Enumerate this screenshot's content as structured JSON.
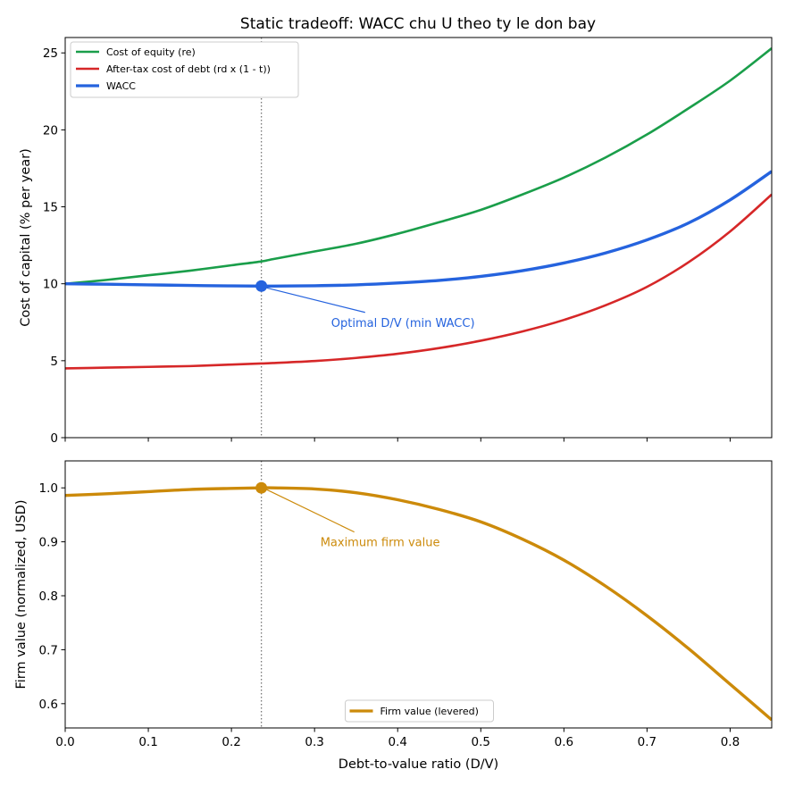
{
  "chart_data": [
    {
      "type": "line",
      "title": "Static tradeoff: WACC chu U theo ty le don bay",
      "xlabel": "",
      "ylabel": "Cost of capital (% per year)",
      "xlim": [
        0,
        0.85
      ],
      "ylim": [
        0,
        26
      ],
      "xticks": [
        0.0,
        0.1,
        0.2,
        0.3,
        0.4,
        0.5,
        0.6,
        0.7,
        0.8
      ],
      "yticks": [
        0,
        5,
        10,
        15,
        20,
        25
      ],
      "legend_position": "top-left",
      "x": [
        0.0,
        0.05,
        0.1,
        0.15,
        0.2,
        0.236,
        0.25,
        0.3,
        0.35,
        0.4,
        0.45,
        0.5,
        0.55,
        0.6,
        0.65,
        0.7,
        0.75,
        0.8,
        0.85
      ],
      "series": [
        {
          "name": "Cost of equity (re)",
          "color": "#1a9e4a",
          "values": [
            10.0,
            10.25,
            10.55,
            10.85,
            11.2,
            11.45,
            11.6,
            12.1,
            12.6,
            13.25,
            14.0,
            14.8,
            15.8,
            16.9,
            18.2,
            19.7,
            21.4,
            23.2,
            25.3
          ]
        },
        {
          "name": "After-tax cost of debt (rd x (1 - t))",
          "color": "#d62728",
          "values": [
            4.5,
            4.55,
            4.6,
            4.65,
            4.75,
            4.82,
            4.85,
            4.98,
            5.18,
            5.45,
            5.82,
            6.3,
            6.9,
            7.65,
            8.6,
            9.8,
            11.4,
            13.4,
            15.8
          ]
        },
        {
          "name": "WACC",
          "color": "#2563de",
          "values": [
            10.0,
            9.97,
            9.93,
            9.89,
            9.86,
            9.85,
            9.85,
            9.87,
            9.93,
            10.05,
            10.22,
            10.48,
            10.85,
            11.35,
            12.0,
            12.85,
            13.95,
            15.45,
            17.3
          ]
        }
      ],
      "marker": {
        "x": 0.236,
        "y": 9.85,
        "color": "#2563de"
      },
      "vline_x": 0.236,
      "annotation": {
        "text": "Optimal D/V (min WACC)",
        "x": 0.236,
        "y": 9.85,
        "text_x": 0.32,
        "text_y": 7.5,
        "color": "#2563de"
      }
    },
    {
      "type": "line",
      "title": "",
      "xlabel": "Debt-to-value ratio (D/V)",
      "ylabel": "Firm value (normalized, USD)",
      "xlim": [
        0,
        0.85
      ],
      "ylim": [
        0.555,
        1.05
      ],
      "xticks": [
        0.0,
        0.1,
        0.2,
        0.3,
        0.4,
        0.5,
        0.6,
        0.7,
        0.8
      ],
      "yticks": [
        0.6,
        0.7,
        0.8,
        0.9,
        1.0
      ],
      "legend_position": "bottom-center",
      "x": [
        0.0,
        0.05,
        0.1,
        0.15,
        0.2,
        0.236,
        0.25,
        0.3,
        0.35,
        0.4,
        0.45,
        0.5,
        0.55,
        0.6,
        0.65,
        0.7,
        0.75,
        0.8,
        0.85
      ],
      "series": [
        {
          "name": "Firm value (levered)",
          "color": "#cc8a0a",
          "values": [
            0.986,
            0.989,
            0.993,
            0.997,
            0.999,
            1.0,
            1.0,
            0.998,
            0.991,
            0.978,
            0.96,
            0.937,
            0.905,
            0.866,
            0.818,
            0.763,
            0.702,
            0.636,
            0.57
          ]
        }
      ],
      "marker": {
        "x": 0.236,
        "y": 1.0,
        "color": "#cc8a0a"
      },
      "vline_x": 0.236,
      "annotation": {
        "text": "Maximum firm value",
        "x": 0.236,
        "y": 1.0,
        "text_x": 0.307,
        "text_y": 0.9,
        "color": "#cc8a0a"
      }
    }
  ]
}
